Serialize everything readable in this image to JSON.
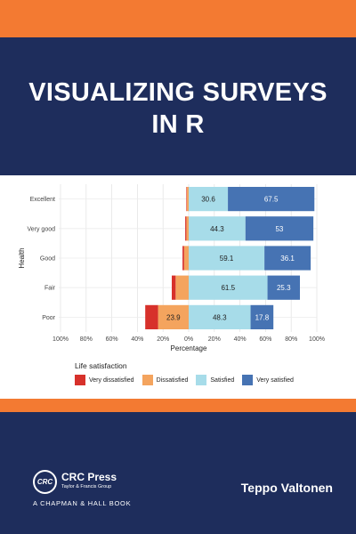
{
  "cover": {
    "title_line1": "VISUALIZING SURVEYS",
    "title_line2": "IN R",
    "author": "Teppo Valtonen",
    "publisher_logo_text": "CRC",
    "publisher_name": "CRC Press",
    "publisher_group": "Taylor & Francis Group",
    "series": "A CHAPMAN & HALL BOOK"
  },
  "chart_data": {
    "type": "bar",
    "orientation": "horizontal-diverging",
    "categories": [
      "Excellent",
      "Very good",
      "Good",
      "Fair",
      "Poor"
    ],
    "xlabel": "Percentage",
    "ylabel": "Health",
    "xlim": [
      -100,
      100
    ],
    "x_ticks": [
      "100%",
      "80%",
      "60%",
      "40%",
      "20%",
      "0%",
      "20%",
      "40%",
      "60%",
      "80%",
      "100%"
    ],
    "legend_title": "Life satisfaction",
    "legend_position": "bottom",
    "grid": true,
    "series": [
      {
        "name": "Very dissatisfied",
        "color": "#d7312b",
        "side": "negative",
        "values": [
          0.4,
          0.9,
          1.2,
          3.0,
          10.0
        ],
        "labels": [
          "",
          "",
          "",
          "",
          ""
        ]
      },
      {
        "name": "Dissatisfied",
        "color": "#f4a45e",
        "side": "negative",
        "values": [
          1.5,
          1.8,
          3.6,
          10.2,
          23.9
        ],
        "labels": [
          "",
          "",
          "",
          "",
          "23.9"
        ]
      },
      {
        "name": "Satisfied",
        "color": "#a7dce9",
        "side": "positive",
        "values": [
          30.6,
          44.3,
          59.1,
          61.5,
          48.3
        ],
        "labels": [
          "30.6",
          "44.3",
          "59.1",
          "61.5",
          "48.3"
        ]
      },
      {
        "name": "Very satisfied",
        "color": "#4673b3",
        "side": "positive",
        "values": [
          67.5,
          53,
          36.1,
          25.3,
          17.8
        ],
        "labels": [
          "67.5",
          "53",
          "36.1",
          "25.3",
          "17.8"
        ]
      }
    ]
  }
}
